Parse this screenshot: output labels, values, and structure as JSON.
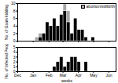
{
  "chart_data": [
    {
      "type": "bar",
      "stacked": true,
      "ylabel": "No. of Goats kidding",
      "x": [
        1,
        2,
        3,
        4,
        5,
        6,
        7,
        8,
        9,
        10,
        11,
        12,
        13,
        14,
        15,
        16,
        17,
        18,
        19,
        20,
        21,
        22,
        23,
        24,
        25,
        26,
        27
      ],
      "series": [
        {
          "name": null,
          "color": "#000000",
          "values": [
            0,
            0,
            0,
            0,
            0,
            1,
            2,
            5,
            4,
            6,
            4,
            7,
            8,
            5,
            2,
            6,
            3,
            3,
            1,
            0,
            1,
            0,
            0,
            0,
            0,
            0,
            0
          ]
        },
        {
          "name": "abortion/stillbirth",
          "color": "#a6a6a6",
          "values": [
            0,
            0,
            0,
            0,
            1,
            1,
            0,
            0,
            0,
            0,
            0,
            0,
            2,
            3,
            0,
            0,
            0,
            0,
            0,
            0,
            0,
            0,
            0,
            0,
            0,
            0,
            0
          ]
        }
      ],
      "xlim": [
        0,
        28
      ],
      "xticks": [
        {
          "value": 0,
          "label": "Dec"
        },
        {
          "value": 4.4,
          "label": "Jan"
        },
        {
          "value": 8.9,
          "label": "Feb"
        },
        {
          "value": 12.9,
          "label": "Mar"
        },
        {
          "value": 17.3,
          "label": "Apr"
        },
        {
          "value": 21.6,
          "label": "May"
        },
        {
          "value": 26,
          "label": "Jun"
        }
      ],
      "ylim": [
        0,
        10
      ],
      "yticks": [
        0,
        2,
        4,
        6,
        8,
        10
      ],
      "legend": "top-right",
      "tick_labels": "y"
    },
    {
      "type": "bar",
      "ylabel": "No. of Infected People",
      "xlabel": "weeks",
      "x": [
        1,
        2,
        3,
        4,
        5,
        6,
        7,
        8,
        9,
        10,
        11,
        12,
        13,
        14,
        15,
        16,
        17,
        18,
        19,
        20,
        21,
        22,
        23,
        24,
        25,
        26,
        27
      ],
      "series": [
        {
          "name": null,
          "color": "#000000",
          "values": [
            0,
            0,
            0,
            0,
            0,
            0,
            0,
            0,
            0,
            1,
            2,
            3,
            1,
            2,
            3,
            3,
            2,
            0,
            2,
            0,
            0,
            0,
            0,
            0,
            0,
            0,
            0
          ]
        }
      ],
      "xlim": [
        0,
        28
      ],
      "xticks": [
        {
          "value": 0,
          "label": "Dec"
        },
        {
          "value": 4.4,
          "label": "Jan"
        },
        {
          "value": 8.9,
          "label": "Feb"
        },
        {
          "value": 12.9,
          "label": "Mar"
        },
        {
          "value": 17.3,
          "label": "Apr"
        },
        {
          "value": 21.6,
          "label": "May"
        },
        {
          "value": 26,
          "label": "Jun"
        }
      ],
      "ylim": [
        0,
        5
      ],
      "yticks": [
        0,
        1,
        2,
        3,
        4,
        5
      ]
    }
  ]
}
